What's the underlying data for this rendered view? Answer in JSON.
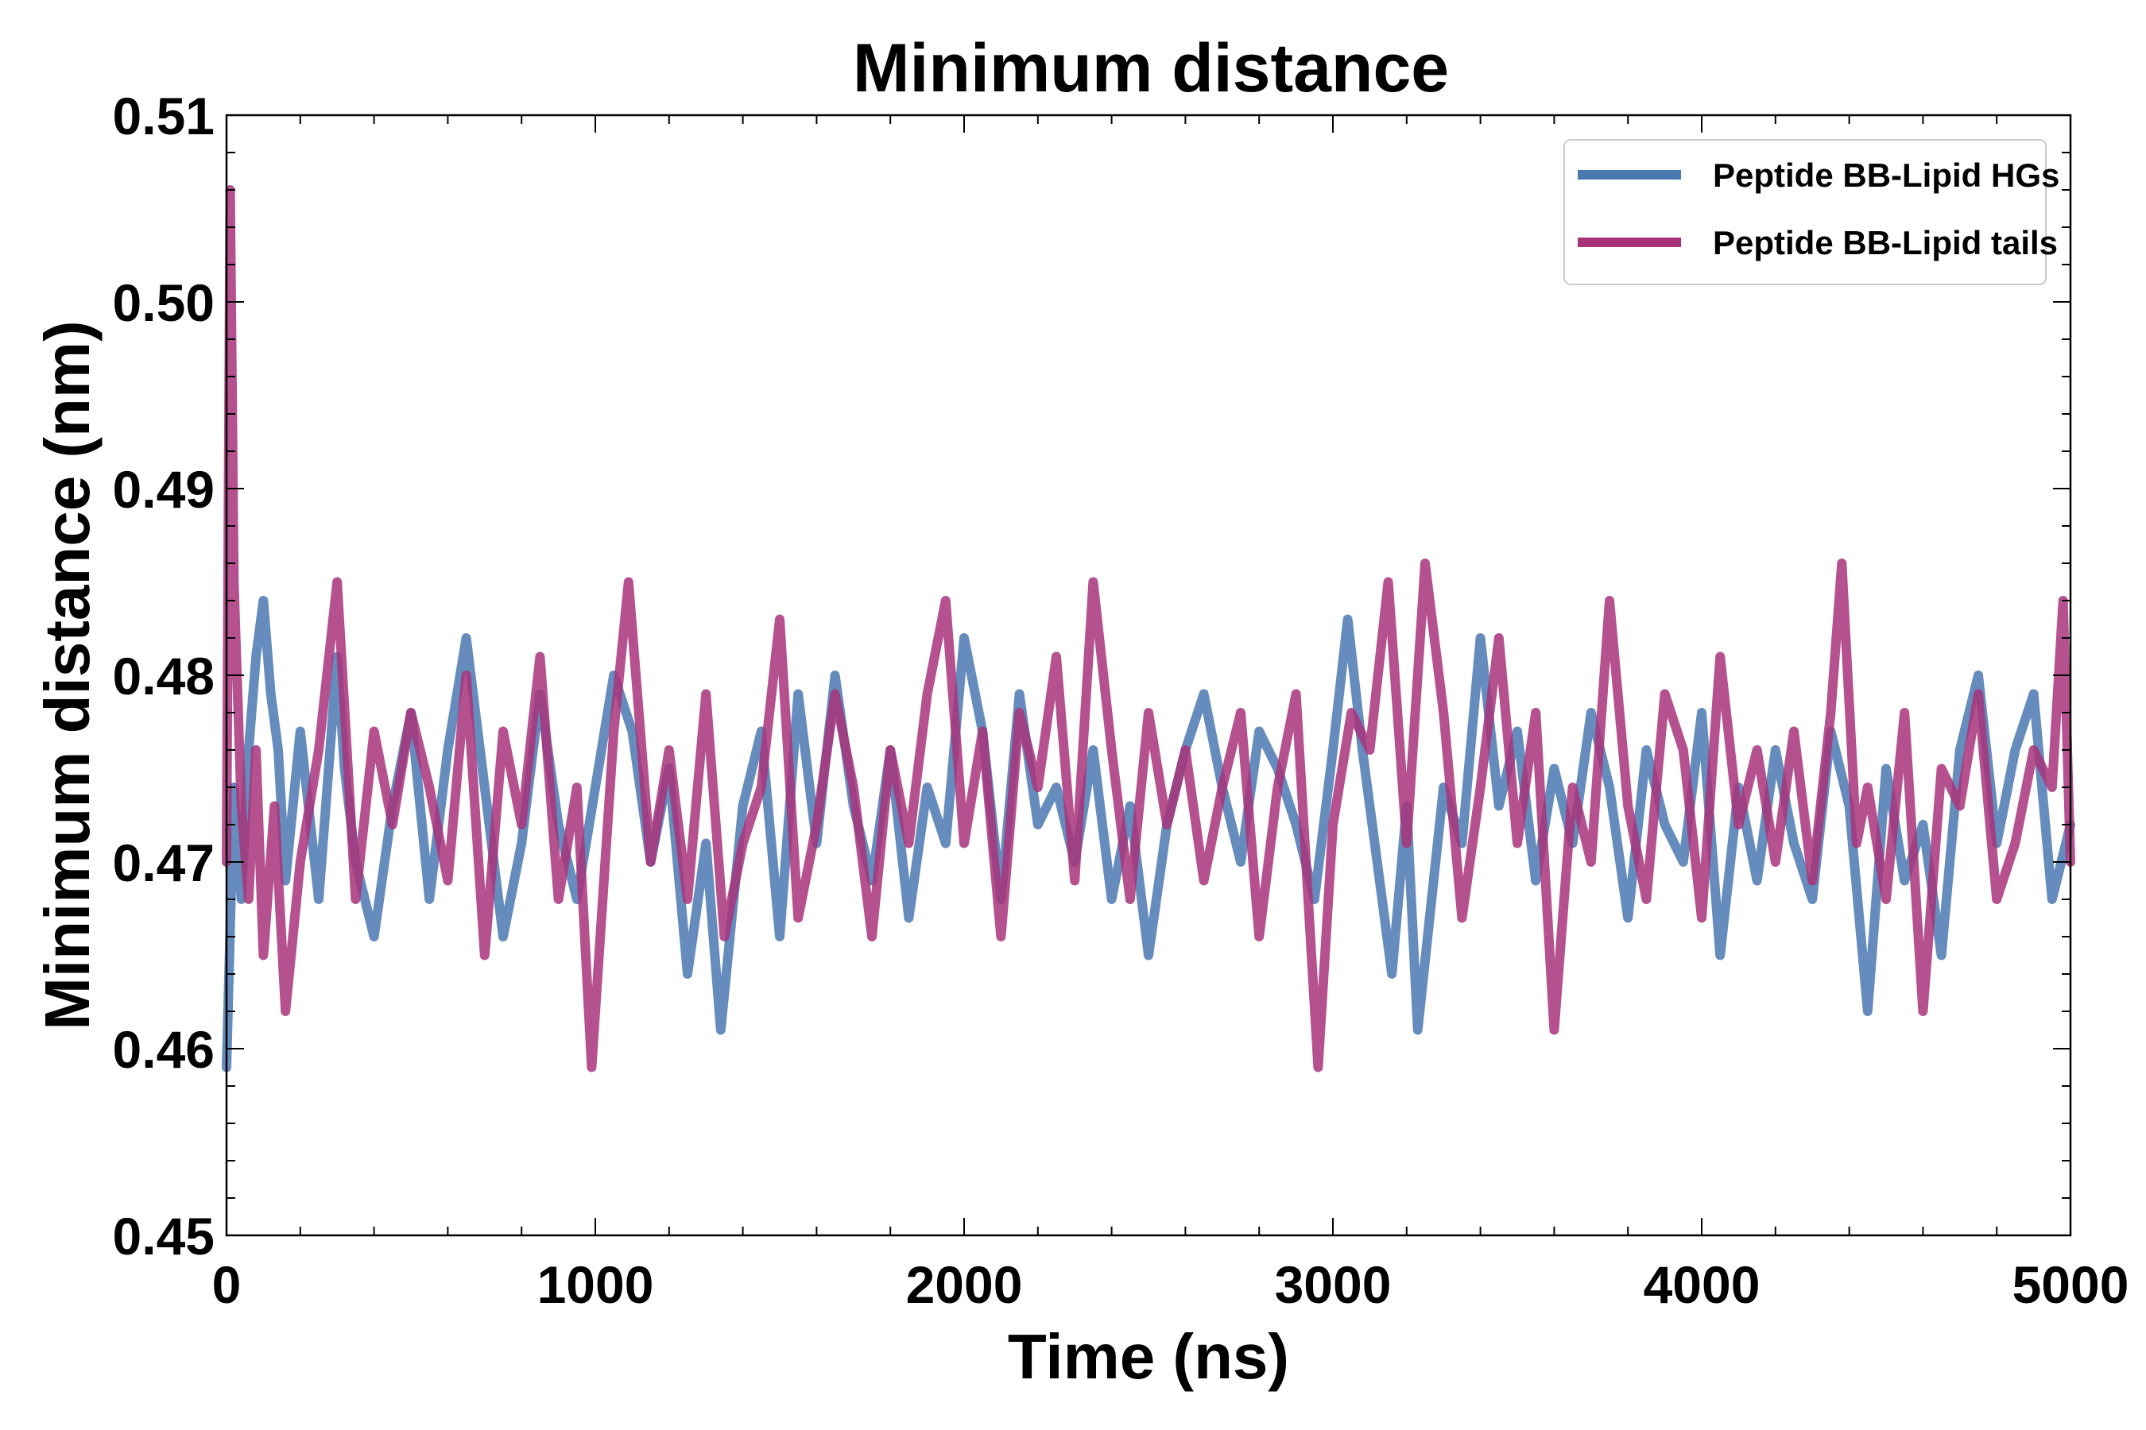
{
  "chart_data": {
    "type": "line",
    "title": "Minimum distance",
    "xlabel": "Time (ns)",
    "ylabel": "Minimum distance (nm)",
    "xlim": [
      0,
      5000
    ],
    "ylim": [
      0.45,
      0.51
    ],
    "xticks": [
      0,
      1000,
      2000,
      3000,
      4000,
      5000
    ],
    "xtick_labels": [
      "0",
      "1000",
      "2000",
      "3000",
      "4000",
      "5000"
    ],
    "yticks": [
      0.45,
      0.46,
      0.47,
      0.48,
      0.49,
      0.5,
      0.51
    ],
    "ytick_labels": [
      "0.45",
      "0.46",
      "0.47",
      "0.48",
      "0.49",
      "0.50",
      "0.51"
    ],
    "x_minor_step": 200,
    "y_minor_step": 0.002,
    "grid": false,
    "legend_position": "top-right",
    "series": [
      {
        "name": "Peptide BB-Lipid HGs",
        "color": "#4a78b0",
        "x": [
          0,
          20,
          40,
          60,
          80,
          100,
          120,
          140,
          160,
          180,
          200,
          250,
          300,
          320,
          350,
          400,
          450,
          500,
          550,
          600,
          650,
          700,
          750,
          800,
          850,
          900,
          950,
          1000,
          1050,
          1100,
          1150,
          1200,
          1250,
          1300,
          1340,
          1400,
          1450,
          1500,
          1550,
          1600,
          1650,
          1700,
          1750,
          1800,
          1850,
          1900,
          1950,
          2000,
          2050,
          2100,
          2150,
          2200,
          2250,
          2300,
          2350,
          2400,
          2450,
          2500,
          2550,
          2600,
          2650,
          2700,
          2750,
          2800,
          2850,
          2900,
          2950,
          3000,
          3040,
          3080,
          3120,
          3160,
          3200,
          3230,
          3300,
          3350,
          3400,
          3450,
          3500,
          3550,
          3600,
          3650,
          3700,
          3750,
          3800,
          3850,
          3900,
          3950,
          4000,
          4050,
          4100,
          4150,
          4200,
          4250,
          4300,
          4350,
          4400,
          4450,
          4500,
          4550,
          4600,
          4650,
          4700,
          4750,
          4800,
          4850,
          4900,
          4950,
          5000
        ],
        "values": [
          0.459,
          0.474,
          0.468,
          0.476,
          0.481,
          0.484,
          0.479,
          0.476,
          0.469,
          0.473,
          0.477,
          0.468,
          0.481,
          0.475,
          0.47,
          0.466,
          0.473,
          0.478,
          0.468,
          0.476,
          0.482,
          0.474,
          0.466,
          0.471,
          0.479,
          0.472,
          0.468,
          0.474,
          0.48,
          0.477,
          0.47,
          0.475,
          0.464,
          0.471,
          0.461,
          0.473,
          0.477,
          0.466,
          0.479,
          0.471,
          0.48,
          0.473,
          0.469,
          0.476,
          0.467,
          0.474,
          0.471,
          0.482,
          0.477,
          0.468,
          0.479,
          0.472,
          0.474,
          0.47,
          0.476,
          0.468,
          0.473,
          0.465,
          0.472,
          0.476,
          0.479,
          0.474,
          0.47,
          0.477,
          0.475,
          0.472,
          0.468,
          0.476,
          0.483,
          0.476,
          0.47,
          0.464,
          0.473,
          0.461,
          0.474,
          0.471,
          0.482,
          0.473,
          0.477,
          0.469,
          0.475,
          0.471,
          0.478,
          0.474,
          0.467,
          0.476,
          0.472,
          0.47,
          0.478,
          0.465,
          0.474,
          0.469,
          0.476,
          0.471,
          0.468,
          0.477,
          0.473,
          0.462,
          0.475,
          0.469,
          0.472,
          0.465,
          0.476,
          0.48,
          0.471,
          0.476,
          0.479,
          0.468,
          0.472
        ]
      },
      {
        "name": "Peptide BB-Lipid tails",
        "color": "#a8337a",
        "x": [
          0,
          10,
          20,
          40,
          60,
          80,
          100,
          130,
          160,
          200,
          250,
          300,
          350,
          400,
          450,
          500,
          550,
          600,
          650,
          700,
          750,
          800,
          850,
          900,
          950,
          990,
          1050,
          1090,
          1150,
          1200,
          1250,
          1300,
          1350,
          1400,
          1450,
          1500,
          1550,
          1600,
          1650,
          1700,
          1750,
          1800,
          1850,
          1900,
          1950,
          2000,
          2050,
          2100,
          2150,
          2200,
          2250,
          2300,
          2350,
          2400,
          2450,
          2500,
          2550,
          2600,
          2650,
          2700,
          2750,
          2800,
          2850,
          2900,
          2960,
          3000,
          3050,
          3100,
          3150,
          3200,
          3250,
          3300,
          3350,
          3400,
          3450,
          3500,
          3550,
          3600,
          3650,
          3700,
          3750,
          3800,
          3850,
          3900,
          3950,
          4000,
          4050,
          4100,
          4150,
          4200,
          4250,
          4300,
          4350,
          4380,
          4420,
          4450,
          4500,
          4550,
          4600,
          4650,
          4700,
          4750,
          4800,
          4850,
          4900,
          4950,
          4980,
          5000
        ],
        "values": [
          0.47,
          0.506,
          0.485,
          0.473,
          0.468,
          0.476,
          0.465,
          0.473,
          0.462,
          0.47,
          0.476,
          0.485,
          0.468,
          0.477,
          0.472,
          0.478,
          0.474,
          0.469,
          0.48,
          0.465,
          0.477,
          0.472,
          0.481,
          0.468,
          0.474,
          0.459,
          0.477,
          0.485,
          0.47,
          0.476,
          0.468,
          0.479,
          0.466,
          0.471,
          0.474,
          0.483,
          0.467,
          0.472,
          0.479,
          0.474,
          0.466,
          0.476,
          0.471,
          0.479,
          0.484,
          0.471,
          0.477,
          0.466,
          0.478,
          0.474,
          0.481,
          0.469,
          0.485,
          0.476,
          0.468,
          0.478,
          0.472,
          0.476,
          0.469,
          0.474,
          0.478,
          0.466,
          0.474,
          0.479,
          0.459,
          0.472,
          0.478,
          0.476,
          0.485,
          0.471,
          0.486,
          0.478,
          0.467,
          0.474,
          0.482,
          0.471,
          0.478,
          0.461,
          0.474,
          0.47,
          0.484,
          0.473,
          0.468,
          0.479,
          0.476,
          0.467,
          0.481,
          0.472,
          0.476,
          0.47,
          0.477,
          0.469,
          0.478,
          0.486,
          0.471,
          0.474,
          0.468,
          0.478,
          0.462,
          0.475,
          0.473,
          0.479,
          0.468,
          0.471,
          0.476,
          0.474,
          0.484,
          0.47
        ]
      }
    ]
  }
}
